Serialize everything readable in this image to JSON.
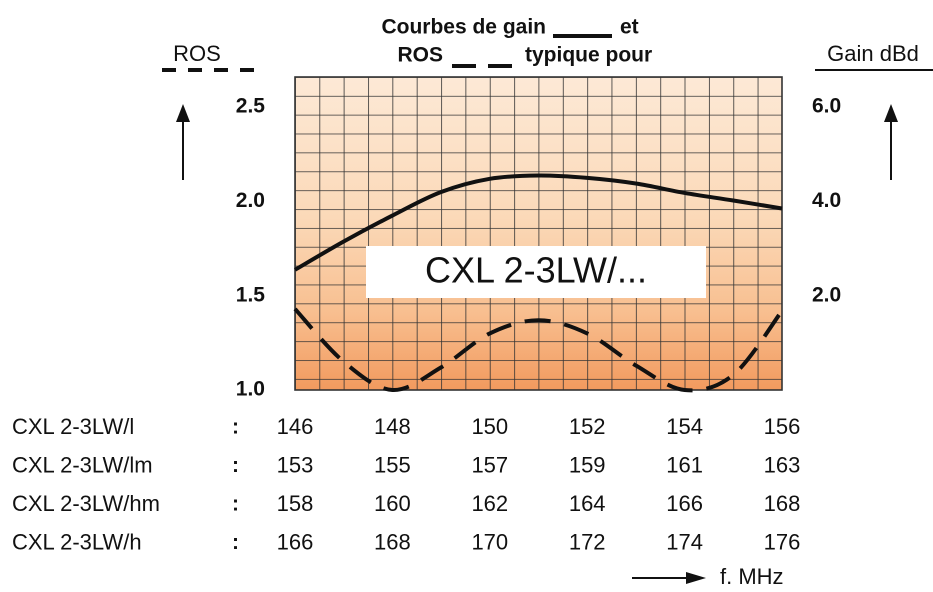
{
  "chart_data": {
    "type": "line",
    "title": {
      "line1_before": "Courbes de gain",
      "line1_after": "et",
      "line2_before": "ROS",
      "line2_after": "typique pour"
    },
    "y_axis_label": "ROS",
    "y2_axis_label": "Gain dBd",
    "x_axis_label": "f. MHz",
    "annotation": "CXL 2-3LW/...",
    "x": [
      146,
      147,
      148,
      149,
      150,
      151,
      152,
      153,
      154,
      155,
      156
    ],
    "series": [
      {
        "name": "Gain",
        "color": "#111111",
        "axis": "y2",
        "dashed": false,
        "values": [
          2.55,
          3.15,
          3.7,
          4.2,
          4.48,
          4.55,
          4.5,
          4.38,
          4.18,
          4.02,
          3.85
        ]
      },
      {
        "name": "ROS",
        "color": "#111111",
        "axis": "y",
        "dashed": true,
        "values": [
          1.43,
          1.15,
          1.0,
          1.12,
          1.3,
          1.37,
          1.3,
          1.13,
          1.0,
          1.08,
          1.42
        ]
      }
    ],
    "xlim": [
      146,
      156
    ],
    "ylim": [
      1.0,
      2.66
    ],
    "yticks": [
      {
        "value": 1.0,
        "label": "1.0"
      },
      1.5,
      {
        "value": 2.0,
        "label": "2.0"
      },
      2.5
    ],
    "y2lim": [
      0,
      6.64
    ],
    "y2ticks": [
      {
        "value": 2.0,
        "label": "2.0"
      },
      {
        "value": 4.0,
        "label": "4.0"
      },
      {
        "value": 6.0,
        "label": "6.0"
      }
    ],
    "x_rows": [
      {
        "name": "CXL 2-3LW/l",
        "separator": ":",
        "ticks": [
          146,
          148,
          150,
          152,
          154,
          156
        ]
      },
      {
        "name": "CXL 2-3LW/lm",
        "separator": ":",
        "ticks": [
          153,
          155,
          157,
          159,
          161,
          163
        ]
      },
      {
        "name": "CXL 2-3LW/hm",
        "separator": ":",
        "ticks": [
          158,
          160,
          162,
          164,
          166,
          168
        ]
      },
      {
        "name": "CXL 2-3LW/h",
        "separator": ":",
        "ticks": [
          166,
          168,
          170,
          172,
          174,
          176
        ]
      }
    ]
  }
}
